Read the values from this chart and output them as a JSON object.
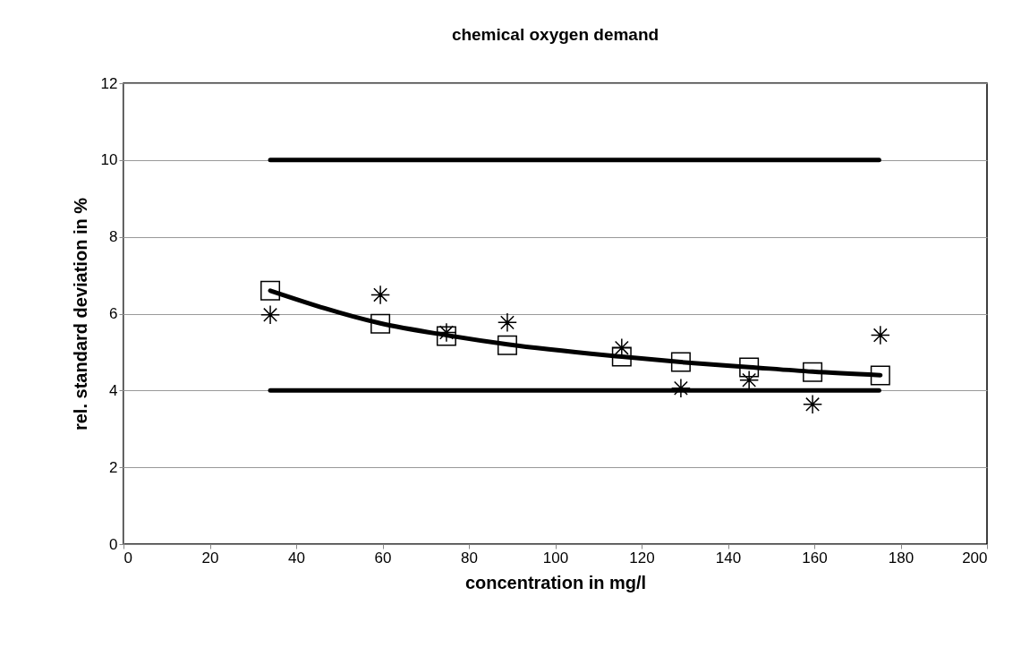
{
  "chart_data": {
    "type": "scatter",
    "title": "chemical oxygen demand",
    "xlabel": "concentration in mg/l",
    "ylabel": "rel. standard deviation in %",
    "xlim": [
      0,
      200
    ],
    "xticks": [
      0,
      20,
      40,
      60,
      80,
      100,
      120,
      140,
      160,
      180,
      200
    ],
    "ylim": [
      0,
      12
    ],
    "yticks": [
      0,
      2,
      4,
      6,
      8,
      10,
      12
    ],
    "grid": "y",
    "series": [
      {
        "type": "line",
        "color": "#000000",
        "marker": "none",
        "line_style": "solid",
        "x": [
          34,
          175
        ],
        "values": [
          10,
          10
        ]
      },
      {
        "type": "line",
        "color": "#000000",
        "marker": "none",
        "line_style": "solid",
        "x": [
          34,
          175
        ],
        "values": [
          4,
          4
        ]
      },
      {
        "type": "line",
        "color": "#000000",
        "marker": "none",
        "line_style": "solid",
        "x": [
          34,
          59.5,
          74.8,
          88.9,
          115.4,
          129.1,
          144.9,
          159.6,
          175.3
        ],
        "values": [
          6.6,
          5.75,
          5.44,
          5.2,
          4.88,
          4.74,
          4.61,
          4.49,
          4.4
        ]
      },
      {
        "color": "#000000",
        "marker": "square",
        "x": [
          34,
          59.5,
          74.8,
          88.9,
          115.4,
          129.1,
          144.9,
          159.6,
          175.3
        ],
        "values": [
          6.6,
          5.74,
          5.42,
          5.18,
          4.88,
          4.74,
          4.6,
          4.48,
          4.39
        ]
      },
      {
        "color": "#000000",
        "marker": "cross",
        "x": [
          34,
          59.5,
          74.8,
          88.9,
          115.4,
          129.1,
          144.9,
          159.6,
          175.3
        ],
        "values": [
          5.97,
          6.49,
          5.51,
          5.77,
          5.11,
          4.06,
          4.27,
          3.64,
          5.44
        ]
      }
    ]
  }
}
